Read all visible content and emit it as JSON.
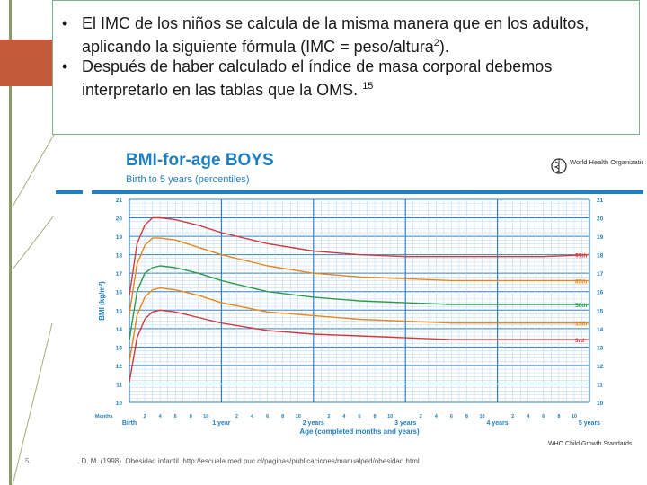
{
  "slide": {
    "bullet_1_a": "El IMC de los niños se calcula de la misma manera que en los adultos, aplicando la siguiente fórmula (IMC = peso/altura",
    "bullet_1_sup": "2",
    "bullet_1_b": ").",
    "bullet_2_a": "Después de haber calculado el índice de masa corporal debemos interpretarlo en las tablas que la OMS.",
    "bullet_2_sup": "15",
    "page_number": "5.",
    "reference": ". D. M. (1998). Obesidad infantil. http://escuela.med.puc.cl/paginas/publicaciones/manualped/obesidad.html",
    "colors": {
      "accent_red": "#c55a3a",
      "green_border": "#7fb089",
      "who_blue": "#1f7fc0",
      "grid_blue": "#2f80c8"
    }
  },
  "chart_data": {
    "type": "line",
    "title": "BMI-for-age BOYS",
    "subtitle": "Birth to 5 years (percentiles)",
    "organization": "World Health Organization",
    "source": "WHO Child Growth Standards",
    "ylabel": "BMI (kg/m²)",
    "xlabel": "Age (completed months and years)",
    "months_label": "Months",
    "ylim": [
      10,
      21
    ],
    "xlim": [
      0,
      60
    ],
    "y_ticks": [
      "10",
      "11",
      "12",
      "13",
      "14",
      "15",
      "16",
      "17",
      "18",
      "19",
      "20",
      "21"
    ],
    "x_year_ticks": [
      {
        "m": 0,
        "label": "Birth"
      },
      {
        "m": 12,
        "label": "1 year"
      },
      {
        "m": 24,
        "label": "2 years"
      },
      {
        "m": 36,
        "label": "3 years"
      },
      {
        "m": 48,
        "label": "4 years"
      },
      {
        "m": 60,
        "label": "5 years"
      }
    ],
    "x_month_ticks": [
      "2",
      "4",
      "6",
      "8",
      "10",
      "2",
      "4",
      "6",
      "8",
      "10",
      "2",
      "4",
      "6",
      "8",
      "10",
      "2",
      "4",
      "6",
      "8",
      "10",
      "2",
      "4",
      "6",
      "8",
      "10"
    ],
    "x": [
      0,
      1,
      2,
      3,
      4,
      6,
      9,
      12,
      18,
      24,
      30,
      36,
      42,
      48,
      54,
      60
    ],
    "series": [
      {
        "name": "97th",
        "color": "#d03a3a",
        "values": [
          15.8,
          18.6,
          19.6,
          20.0,
          20.0,
          19.9,
          19.6,
          19.2,
          18.6,
          18.2,
          18.0,
          17.9,
          17.9,
          17.9,
          17.9,
          18.0
        ]
      },
      {
        "name": "85th",
        "color": "#e8861a",
        "values": [
          14.8,
          17.5,
          18.5,
          18.9,
          18.9,
          18.8,
          18.4,
          18.0,
          17.4,
          17.0,
          16.8,
          16.7,
          16.6,
          16.6,
          16.6,
          16.6
        ]
      },
      {
        "name": "50th",
        "color": "#2f9a4a",
        "values": [
          13.4,
          16.0,
          17.0,
          17.3,
          17.4,
          17.3,
          17.0,
          16.6,
          16.0,
          15.7,
          15.5,
          15.4,
          15.3,
          15.3,
          15.3,
          15.3
        ]
      },
      {
        "name": "15th",
        "color": "#e8861a",
        "values": [
          12.2,
          14.7,
          15.7,
          16.1,
          16.2,
          16.1,
          15.8,
          15.4,
          14.9,
          14.7,
          14.5,
          14.4,
          14.3,
          14.3,
          14.3,
          14.3
        ]
      },
      {
        "name": "3rd",
        "color": "#d03a3a",
        "values": [
          11.1,
          13.5,
          14.5,
          14.9,
          15.0,
          14.9,
          14.6,
          14.3,
          13.9,
          13.7,
          13.6,
          13.5,
          13.4,
          13.4,
          13.4,
          13.4
        ]
      }
    ],
    "grid": true
  }
}
